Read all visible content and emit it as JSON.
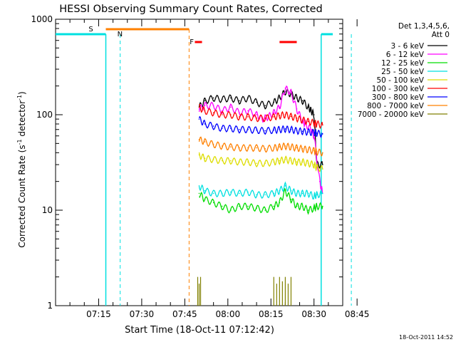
{
  "chart_data": {
    "type": "line",
    "title": "HESSI Observing Summary Count Rates, Corrected",
    "xlabel": "Start Time (18-Oct-11 07:12:42)",
    "ylabel_main": "Corrected Count Rate (s",
    "ylabel_sup1": "-1",
    "ylabel_mid": " detector",
    "ylabel_sup2": "-1",
    "ylabel_end": ")",
    "yscale": "log",
    "ylim": [
      1,
      1000
    ],
    "xlim": [
      "07:12:42",
      "08:52:30"
    ],
    "x_ticks": [
      {
        "label": "07:15",
        "t": 15
      },
      {
        "label": "07:30",
        "t": 30
      },
      {
        "label": "07:45",
        "t": 45
      },
      {
        "label": "08:00",
        "t": 60
      },
      {
        "label": "08:15",
        "t": 75
      },
      {
        "label": "08:30",
        "t": 90
      },
      {
        "label": "08:45",
        "t": 105
      }
    ],
    "y_ticks": [
      {
        "label": "1",
        "v": 1
      },
      {
        "label": "10",
        "v": 10
      },
      {
        "label": "100",
        "v": 100
      },
      {
        "label": "1000",
        "v": 1000
      }
    ],
    "legend_title": [
      "Det 1,3,4,5,6,",
      "Att 0"
    ],
    "legend_position": "right",
    "timestamp": "18-Oct-2011 14:52",
    "flags": [
      {
        "label": "S",
        "color": "#ff8000"
      },
      {
        "label": "N",
        "color": "#00e0e0"
      },
      {
        "label": "F",
        "color": "#ff0000"
      }
    ],
    "series": [
      {
        "name": "3 - 6 keV",
        "color": "#000000",
        "x": [
          50,
          52,
          55,
          58,
          61,
          64,
          67,
          70,
          73,
          76,
          78,
          80,
          82,
          84,
          86,
          88,
          89,
          90,
          91,
          93
        ],
        "y": [
          120,
          140,
          150,
          145,
          150,
          140,
          150,
          135,
          125,
          135,
          150,
          175,
          165,
          150,
          140,
          120,
          110,
          100,
          30,
          30
        ]
      },
      {
        "name": "6 - 12 keV",
        "color": "#ff00ff",
        "x": [
          50,
          52,
          55,
          58,
          61,
          64,
          67,
          70,
          72,
          74,
          76,
          78,
          80,
          82,
          84,
          86,
          87,
          89,
          90,
          92,
          93
        ],
        "y": [
          115,
          125,
          125,
          110,
          120,
          105,
          110,
          100,
          90,
          95,
          105,
          120,
          190,
          170,
          115,
          85,
          80,
          70,
          60,
          20,
          15
        ]
      },
      {
        "name": "12 - 25 keV",
        "color": "#00dd00",
        "x": [
          50,
          52,
          55,
          58,
          61,
          64,
          67,
          70,
          73,
          76,
          78,
          80,
          82,
          84,
          86,
          88,
          90,
          91,
          93
        ],
        "y": [
          15,
          13,
          12,
          11,
          10,
          11,
          11,
          10.5,
          10,
          11,
          12,
          16,
          13,
          11,
          11,
          10,
          10.5,
          11,
          11
        ]
      },
      {
        "name": "25 - 50 keV",
        "color": "#00e0e0",
        "x": [
          50,
          52,
          55,
          58,
          61,
          64,
          67,
          70,
          73,
          76,
          78,
          80,
          82,
          84,
          86,
          88,
          90,
          91,
          93
        ],
        "y": [
          18,
          16,
          15,
          15,
          15.5,
          15,
          15.5,
          14.5,
          14.5,
          15,
          16,
          18,
          16,
          15,
          15,
          15,
          14,
          14.5,
          15
        ]
      },
      {
        "name": "50 - 100 keV",
        "color": "#dddd00",
        "x": [
          50,
          52,
          55,
          58,
          61,
          64,
          67,
          70,
          73,
          76,
          78,
          80,
          82,
          84,
          86,
          88,
          90,
          91,
          93
        ],
        "y": [
          38,
          35,
          34,
          33,
          33,
          32,
          32,
          31,
          31,
          32,
          33,
          34,
          33,
          32,
          32,
          31,
          30,
          28,
          27
        ]
      },
      {
        "name": "100 - 300 keV",
        "color": "#ff0000",
        "x": [
          50,
          52,
          55,
          58,
          61,
          64,
          67,
          70,
          73,
          76,
          78,
          80,
          82,
          84,
          86,
          88,
          90,
          91,
          93
        ],
        "y": [
          120,
          110,
          105,
          100,
          100,
          95,
          95,
          92,
          92,
          95,
          98,
          100,
          96,
          92,
          88,
          85,
          82,
          80,
          78
        ]
      },
      {
        "name": "300 - 800 keV",
        "color": "#0000ff",
        "x": [
          50,
          52,
          55,
          58,
          61,
          64,
          67,
          70,
          73,
          76,
          78,
          80,
          82,
          84,
          86,
          88,
          90,
          91,
          93
        ],
        "y": [
          90,
          80,
          76,
          72,
          72,
          70,
          70,
          69,
          68,
          69,
          70,
          71,
          70,
          68,
          67,
          66,
          65,
          64,
          63
        ]
      },
      {
        "name": "800 - 7000 keV",
        "color": "#ff8000",
        "x": [
          50,
          52,
          55,
          58,
          61,
          64,
          67,
          70,
          73,
          76,
          78,
          80,
          82,
          84,
          86,
          88,
          90,
          91,
          93
        ],
        "y": [
          55,
          52,
          49,
          47,
          46,
          45,
          45,
          45,
          44,
          45,
          46,
          47,
          46,
          45,
          44,
          43,
          42,
          41,
          40
        ]
      },
      {
        "name": "7000 - 20000 keV",
        "color": "#808000",
        "x": [
          49.5,
          50,
          50.5,
          76,
          77,
          78,
          79,
          80,
          81,
          82
        ],
        "y": [
          2,
          1.7,
          2,
          2,
          1.7,
          2,
          1.8,
          2,
          1.7,
          2
        ]
      }
    ]
  }
}
